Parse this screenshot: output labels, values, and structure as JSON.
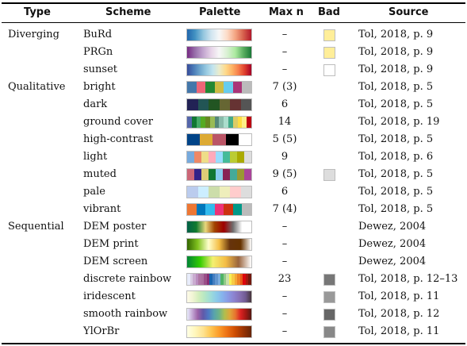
{
  "headers": {
    "type": "Type",
    "scheme": "Scheme",
    "palette": "Palette",
    "max_n": "Max n",
    "bad": "Bad",
    "source": "Source"
  },
  "rows": [
    {
      "type": "Diverging",
      "scheme": "BuRd",
      "palette_kind": "gradient",
      "colors": [
        "#2166ac",
        "#4393c3",
        "#92c5de",
        "#d1e5f0",
        "#f7f7f7",
        "#fddbc7",
        "#f4a582",
        "#d6604d",
        "#b2182b"
      ],
      "max_n": "–",
      "bad": "#ffee99",
      "source": "Tol, 2018, p. 9"
    },
    {
      "type": "",
      "scheme": "PRGn",
      "palette_kind": "gradient",
      "colors": [
        "#762a83",
        "#9970ab",
        "#c2a5cf",
        "#e7d4e8",
        "#f7f7f7",
        "#d9f0d3",
        "#aceaa0",
        "#5aae61",
        "#1b7837"
      ],
      "max_n": "–",
      "bad": "#ffee99",
      "source": "Tol, 2018, p. 9"
    },
    {
      "type": "",
      "scheme": "sunset",
      "palette_kind": "gradient",
      "colors": [
        "#364b9a",
        "#4a7bb7",
        "#6ea6cd",
        "#98cae1",
        "#c2e4ef",
        "#eaeccc",
        "#feda8b",
        "#fdb366",
        "#f67e4b",
        "#dd3d2d",
        "#a50026"
      ],
      "max_n": "–",
      "bad": "#ffffff",
      "source": "Tol, 2018, p. 9"
    },
    {
      "type": "Qualitative",
      "scheme": "bright",
      "palette_kind": "discrete",
      "colors": [
        "#4477aa",
        "#ee6677",
        "#228833",
        "#ccbb44",
        "#66ccee",
        "#aa3377",
        "#bbbbbb"
      ],
      "max_n": "7 (3)",
      "bad": "",
      "source": "Tol, 2018, p. 5"
    },
    {
      "type": "",
      "scheme": "dark",
      "palette_kind": "discrete",
      "colors": [
        "#222255",
        "#225555",
        "#225522",
        "#666633",
        "#663333",
        "#555555"
      ],
      "max_n": "6",
      "bad": "",
      "source": "Tol, 2018, p. 5"
    },
    {
      "type": "",
      "scheme": "ground cover",
      "palette_kind": "discrete",
      "colors": [
        "#5566aa",
        "#117733",
        "#44aa66",
        "#55aa22",
        "#668822",
        "#99bb55",
        "#558877",
        "#88bbaa",
        "#aaddcc",
        "#44aa88",
        "#ddcc66",
        "#ffdd44",
        "#ffee88",
        "#bb0011"
      ],
      "max_n": "14",
      "bad": "",
      "source": "Tol, 2018, p. 19"
    },
    {
      "type": "",
      "scheme": "high-contrast",
      "palette_kind": "discrete",
      "colors": [
        "#004488",
        "#ddaa33",
        "#bb5566",
        "#000000",
        "#ffffff"
      ],
      "max_n": "5 (5)",
      "bad": "",
      "source": "Tol, 2018, p. 5"
    },
    {
      "type": "",
      "scheme": "light",
      "palette_kind": "discrete",
      "colors": [
        "#77aadd",
        "#ee8866",
        "#eedd88",
        "#ffaabb",
        "#99ddff",
        "#44bb99",
        "#bbcc33",
        "#aaaa00",
        "#dddddd"
      ],
      "max_n": "9",
      "bad": "",
      "source": "Tol, 2018, p. 6"
    },
    {
      "type": "",
      "scheme": "muted",
      "palette_kind": "discrete",
      "colors": [
        "#cc6677",
        "#332288",
        "#ddcc77",
        "#117733",
        "#88ccee",
        "#882255",
        "#44aa99",
        "#999933",
        "#aa4499"
      ],
      "max_n": "9 (5)",
      "bad": "#dddddd",
      "source": "Tol, 2018, p. 5"
    },
    {
      "type": "",
      "scheme": "pale",
      "palette_kind": "discrete",
      "colors": [
        "#bbccee",
        "#cceeff",
        "#ccddaa",
        "#eeeebb",
        "#ffcccc",
        "#dddddd"
      ],
      "max_n": "6",
      "bad": "",
      "source": "Tol, 2018, p. 5"
    },
    {
      "type": "",
      "scheme": "vibrant",
      "palette_kind": "discrete",
      "colors": [
        "#ee7733",
        "#0077bb",
        "#33bbee",
        "#ee3377",
        "#cc3311",
        "#009988",
        "#bbbbbb"
      ],
      "max_n": "7 (4)",
      "bad": "",
      "source": "Tol, 2018, p. 5"
    },
    {
      "type": "Sequential",
      "scheme": "DEM poster",
      "palette_kind": "gradient",
      "colors": [
        "#006147",
        "#107a2f",
        "#e8d77d",
        "#a14300",
        "#9e0000",
        "#6e6e6e",
        "#ffffff",
        "#ffffff"
      ],
      "max_n": "–",
      "bad": "",
      "source": "Dewez, 2004"
    },
    {
      "type": "",
      "scheme": "DEM print",
      "palette_kind": "gradient",
      "colors": [
        "#336600",
        "#81c31f",
        "#ffffcc",
        "#f4bd45",
        "#66330c",
        "#663300",
        "#ffffff"
      ],
      "max_n": "–",
      "bad": "",
      "source": "Dewez, 2004"
    },
    {
      "type": "",
      "scheme": "DEM screen",
      "palette_kind": "gradient",
      "colors": [
        "#008435",
        "#33cc00",
        "#f4f071",
        "#f4bd45",
        "#99643d",
        "#ffffff"
      ],
      "max_n": "–",
      "bad": "",
      "source": "Dewez, 2004"
    },
    {
      "type": "",
      "scheme": "discrete rainbow",
      "palette_kind": "discrete",
      "colors": [
        "#e8ecfb",
        "#d9cce3",
        "#caacd0",
        "#ba8dbe",
        "#ae76a3",
        "#aa6f9e",
        "#994f88",
        "#882e72",
        "#1965b0",
        "#437dbf",
        "#6195cf",
        "#7bafde",
        "#4eb265",
        "#90c987",
        "#cae0ab",
        "#f7f056",
        "#f7cb45",
        "#f4a736",
        "#ee8026",
        "#e65518",
        "#dc050c",
        "#a5170e",
        "#72190e"
      ],
      "max_n": "23",
      "bad": "#777777",
      "source": "Tol, 2018, p. 12–13"
    },
    {
      "type": "",
      "scheme": "iridescent",
      "palette_kind": "gradient",
      "colors": [
        "#fefbe9",
        "#f0f4d3",
        "#d2eebc",
        "#b6e7c4",
        "#9edcd8",
        "#8ccbe8",
        "#86b4ed",
        "#8a9ae4",
        "#8c83d0",
        "#8670b4",
        "#715b92",
        "#46353a"
      ],
      "max_n": "–",
      "bad": "#999999",
      "source": "Tol, 2018, p. 11"
    },
    {
      "type": "",
      "scheme": "smooth rainbow",
      "palette_kind": "gradient",
      "colors": [
        "#e8ecfb",
        "#c2a5d3",
        "#9b62a7",
        "#6059a9",
        "#4e79c5",
        "#57a3ad",
        "#6db388",
        "#b1be4e",
        "#dfa53a",
        "#e7742f",
        "#da2222",
        "#a01813",
        "#521a13"
      ],
      "max_n": "–",
      "bad": "#666666",
      "source": "Tol, 2018, p. 12"
    },
    {
      "type": "",
      "scheme": "YlOrBr",
      "palette_kind": "gradient",
      "colors": [
        "#ffffe5",
        "#fff7bc",
        "#fee391",
        "#fec44f",
        "#fb9a29",
        "#ec7014",
        "#cc4c02",
        "#993404",
        "#662506"
      ],
      "max_n": "–",
      "bad": "#888888",
      "source": "Tol, 2018, p. 11"
    }
  ]
}
